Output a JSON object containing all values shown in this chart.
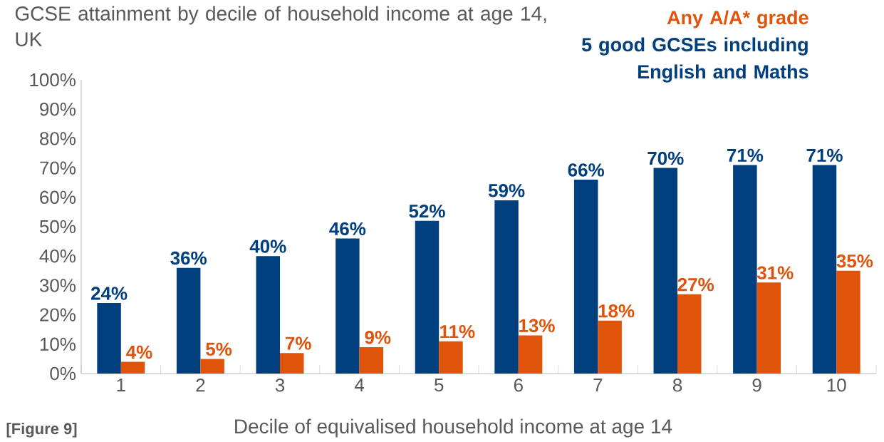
{
  "chart_data": {
    "type": "bar",
    "title": "GCSE attainment by decile of household income at age 14, UK",
    "xlabel": "Decile of equivalised household income at age 14",
    "categories": [
      "1",
      "2",
      "3",
      "4",
      "5",
      "6",
      "7",
      "8",
      "9",
      "10"
    ],
    "series": [
      {
        "name": "5 good GCSEs including English and Maths",
        "color": "#003f7d",
        "values": [
          24,
          36,
          40,
          46,
          52,
          59,
          66,
          70,
          71,
          71
        ],
        "value_labels": [
          "24%",
          "36%",
          "40%",
          "46%",
          "52%",
          "59%",
          "66%",
          "70%",
          "71%",
          "71%"
        ]
      },
      {
        "name": "Any A/A* grade",
        "color": "#e0530a",
        "values": [
          4,
          5,
          7,
          9,
          11,
          13,
          18,
          27,
          31,
          35
        ],
        "value_labels": [
          "4%",
          "5%",
          "7%",
          "9%",
          "11%",
          "13%",
          "18%",
          "27%",
          "31%",
          "35%"
        ]
      }
    ],
    "ylim": [
      0,
      100
    ],
    "yticks": [
      {
        "value": 0,
        "label": "0%"
      },
      {
        "value": 10,
        "label": "10%"
      },
      {
        "value": 20,
        "label": "20%"
      },
      {
        "value": 30,
        "label": "30%"
      },
      {
        "value": 40,
        "label": "40%"
      },
      {
        "value": 50,
        "label": "50%"
      },
      {
        "value": 60,
        "label": "60%"
      },
      {
        "value": 70,
        "label": "70%"
      },
      {
        "value": 80,
        "label": "80%"
      },
      {
        "value": 90,
        "label": "90%"
      },
      {
        "value": 100,
        "label": "100%"
      }
    ],
    "grid": false,
    "legend": "top right",
    "annotations": [
      "[Figure 9]"
    ]
  }
}
